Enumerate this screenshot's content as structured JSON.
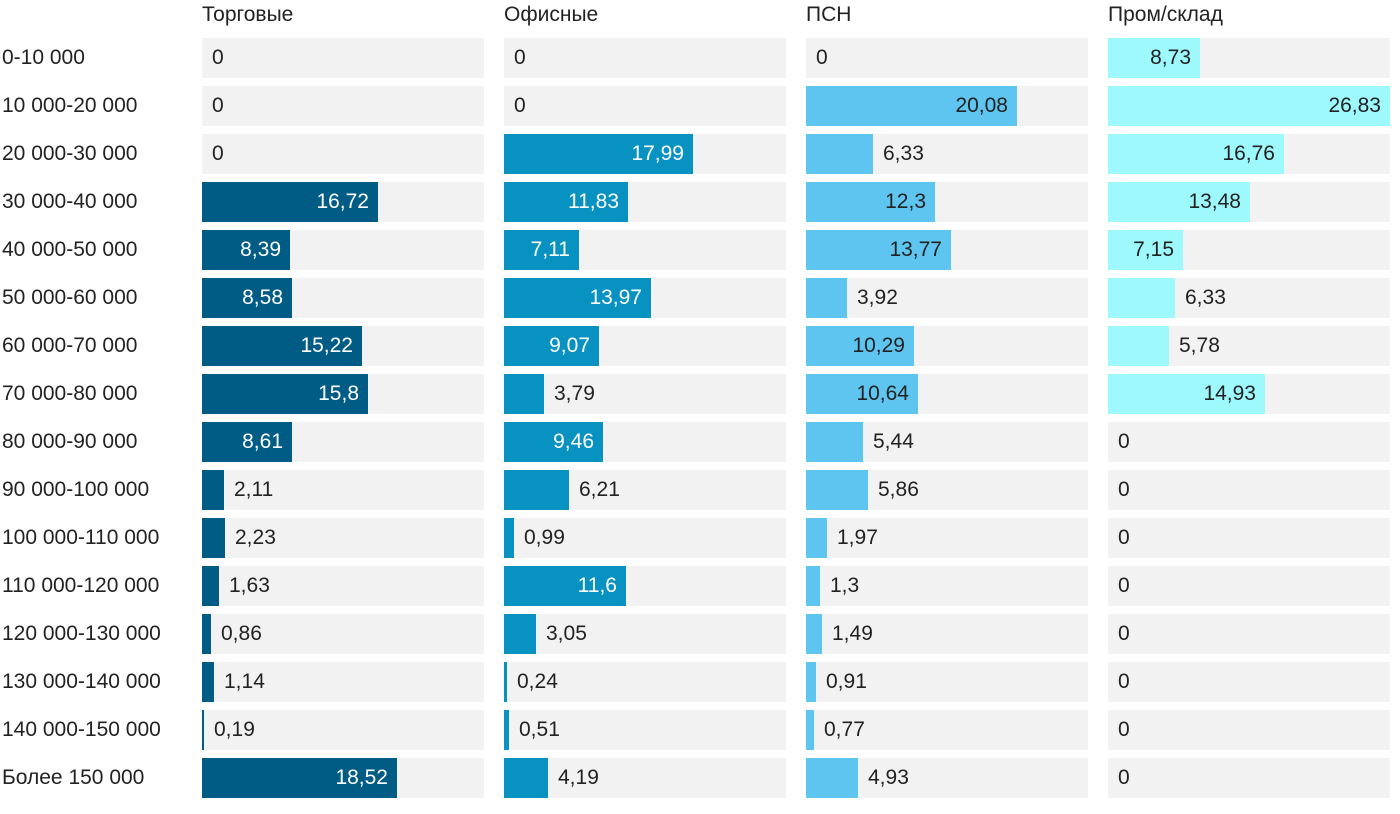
{
  "chart_data": {
    "type": "bar",
    "orientation": "horizontal",
    "layout": "small-multiples",
    "grid": false,
    "legend": "none",
    "max_value": 26.83,
    "categories": [
      "0-10 000",
      "10 000-20 000",
      "20 000-30 000",
      "30 000-40 000",
      "40 000-50 000",
      "50 000-60 000",
      "60 000-70 000",
      "70 000-80 000",
      "80 000-90 000",
      "90 000-100 000",
      "100 000-110 000",
      "110 000-120 000",
      "120 000-130 000",
      "130 000-140 000",
      "140 000-150 000",
      "Более 150 000"
    ],
    "series": [
      {
        "name": "Торговые",
        "color": "#005b85",
        "label_color_inside": "#ffffff",
        "values": [
          0,
          0,
          0,
          16.72,
          8.39,
          8.58,
          15.22,
          15.8,
          8.61,
          2.11,
          2.23,
          1.63,
          0.86,
          1.14,
          0.19,
          18.52
        ],
        "labels": [
          "0",
          "0",
          "0",
          "16,72",
          "8,39",
          "8,58",
          "15,22",
          "15,8",
          "8,61",
          "2,11",
          "2,23",
          "1,63",
          "0,86",
          "1,14",
          "0,19",
          "18,52"
        ]
      },
      {
        "name": "Офисные",
        "color": "#0892c1",
        "label_color_inside": "#ffffff",
        "values": [
          0,
          0,
          17.99,
          11.83,
          7.11,
          13.97,
          9.07,
          3.79,
          9.46,
          6.21,
          0.99,
          11.6,
          3.05,
          0.24,
          0.51,
          4.19
        ],
        "labels": [
          "0",
          "0",
          "17,99",
          "11,83",
          "7,11",
          "13,97",
          "9,07",
          "3,79",
          "9,46",
          "6,21",
          "0,99",
          "11,6",
          "3,05",
          "0,24",
          "0,51",
          "4,19"
        ]
      },
      {
        "name": "ПСН",
        "color": "#5ec4f0",
        "label_color_inside": "#222222",
        "values": [
          0,
          20.08,
          6.33,
          12.3,
          13.77,
          3.92,
          10.29,
          10.64,
          5.44,
          5.86,
          1.97,
          1.3,
          1.49,
          0.91,
          0.77,
          4.93
        ],
        "labels": [
          "0",
          "20,08",
          "6,33",
          "12,3",
          "13,77",
          "3,92",
          "10,29",
          "10,64",
          "5,44",
          "5,86",
          "1,97",
          "1,3",
          "1,49",
          "0,91",
          "0,77",
          "4,93"
        ]
      },
      {
        "name": "Пром/склад",
        "color": "#9ef9fd",
        "label_color_inside": "#222222",
        "values": [
          8.73,
          26.83,
          16.76,
          13.48,
          7.15,
          6.33,
          5.78,
          14.93,
          0,
          0,
          0,
          0,
          0,
          0,
          0,
          0
        ],
        "labels": [
          "8,73",
          "26,83",
          "16,76",
          "13,48",
          "7,15",
          "6,33",
          "5,78",
          "14,93",
          "0",
          "0",
          "0",
          "0",
          "0",
          "0",
          "0",
          "0"
        ]
      }
    ],
    "title": "",
    "xlabel": "",
    "ylabel": ""
  }
}
